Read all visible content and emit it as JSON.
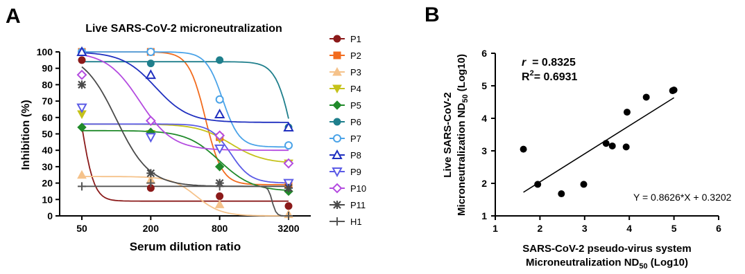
{
  "panel_a": {
    "panel_label": "A",
    "chart_data": {
      "type": "line",
      "title": "Live SARS-CoV-2 microneutralization",
      "xlabel": "Serum dilution ratio",
      "ylabel": "Inhibition (%)",
      "x_scale": "log",
      "x": [
        50,
        200,
        800,
        3200
      ],
      "x_tick_labels": [
        "50",
        "200",
        "800",
        "3200"
      ],
      "ylim": [
        0,
        100
      ],
      "y_ticks": [
        0,
        10,
        20,
        30,
        40,
        50,
        60,
        70,
        80,
        90,
        100
      ],
      "grid": false,
      "legend_position": "right",
      "series": [
        {
          "name": "P1",
          "values": [
            95,
            17,
            12,
            6
          ],
          "fit": [
            100,
            9,
            50,
            8
          ],
          "color": "#8b1a1a",
          "marker": "circle"
        },
        {
          "name": "P2",
          "values": [
            100,
            100,
            48,
            19
          ],
          "fit": [
            100,
            19,
            600,
            6
          ],
          "color": "#f26b1d",
          "marker": "square"
        },
        {
          "name": "P3",
          "values": [
            25,
            22,
            7,
            1
          ],
          "fit": [
            24,
            0,
            500,
            4
          ],
          "color": "#f5c28a",
          "marker": "triangle-up"
        },
        {
          "name": "P4",
          "values": [
            62,
            50,
            47,
            32
          ],
          "fit": [
            56,
            32,
            1000,
            3
          ],
          "color": "#c5c21a",
          "marker": "triangle-down"
        },
        {
          "name": "P5",
          "values": [
            54,
            51,
            30,
            15
          ],
          "fit": [
            52,
            15,
            800,
            3
          ],
          "color": "#208a2a",
          "marker": "diamond"
        },
        {
          "name": "P6",
          "values": [
            100,
            93,
            95,
            54
          ],
          "fit": [
            94,
            0,
            3500,
            6
          ],
          "color": "#1f7f8c",
          "marker": "circle"
        },
        {
          "name": "P7",
          "values": [
            100,
            100,
            71,
            43
          ],
          "fit": [
            100,
            42,
            850,
            6
          ],
          "color": "#4aa3e8",
          "marker": "circle-open"
        },
        {
          "name": "P8",
          "values": [
            100,
            86,
            62,
            54
          ],
          "fit": [
            100,
            57,
            220,
            3
          ],
          "color": "#1f2fbf",
          "marker": "triangle-up-open"
        },
        {
          "name": "P9",
          "values": [
            66,
            48,
            41,
            20
          ],
          "fit": [
            56,
            20,
            1000,
            5
          ],
          "color": "#5b5be6",
          "marker": "triangle-down-open"
        },
        {
          "name": "P10",
          "values": [
            86,
            58,
            49,
            32
          ],
          "fit": [
            100,
            40,
            160,
            3
          ],
          "color": "#b44be0",
          "marker": "diamond-open"
        },
        {
          "name": "P11",
          "values": [
            80,
            26,
            20,
            17
          ],
          "fit": [
            100,
            18,
            100,
            3
          ],
          "color": "#4a4a4a",
          "marker": "star"
        },
        {
          "name": "H1",
          "values": [
            18,
            20,
            18,
            0
          ],
          "fit": [
            18,
            0,
            2300,
            25
          ],
          "color": "#555555",
          "marker": "plus"
        }
      ]
    }
  },
  "panel_b": {
    "panel_label": "B",
    "chart_data": {
      "type": "scatter",
      "xlabel_line1": "SARS-CoV-2 pseudo-virus system",
      "xlabel_line2_main": "Microneutralization ND",
      "xlabel_line2_sub": "50",
      "xlabel_line2_tail": " (Log10)",
      "ylabel_line1": "Live SARS-CoV-2",
      "ylabel_line2_main": "Microneutralization ND",
      "ylabel_line2_sub": "50",
      "ylabel_line2_tail": " (Log10)",
      "xlim": [
        1,
        6
      ],
      "ylim": [
        1,
        6
      ],
      "x_ticks": [
        1,
        2,
        3,
        4,
        5,
        6
      ],
      "y_ticks": [
        1,
        2,
        3,
        4,
        5,
        6
      ],
      "grid": false,
      "points": [
        {
          "x": 1.63,
          "y": 3.05
        },
        {
          "x": 1.95,
          "y": 1.97
        },
        {
          "x": 2.48,
          "y": 1.68
        },
        {
          "x": 2.98,
          "y": 1.97
        },
        {
          "x": 3.48,
          "y": 3.23
        },
        {
          "x": 3.62,
          "y": 3.15
        },
        {
          "x": 3.93,
          "y": 3.12
        },
        {
          "x": 3.95,
          "y": 4.19
        },
        {
          "x": 4.38,
          "y": 4.65
        },
        {
          "x": 4.97,
          "y": 4.85
        },
        {
          "x": 5.0,
          "y": 4.87
        }
      ],
      "regression": {
        "slope": 0.8626,
        "intercept": 0.3202,
        "x_range": [
          1.63,
          5.0
        ]
      },
      "equation": "Y = 0.8626*X + 0.3202",
      "r_label": "r",
      "r_text": "  = 0.8325",
      "r2_main": "R",
      "r2_sup": "2",
      "r2_text": "= 0.6931"
    }
  }
}
